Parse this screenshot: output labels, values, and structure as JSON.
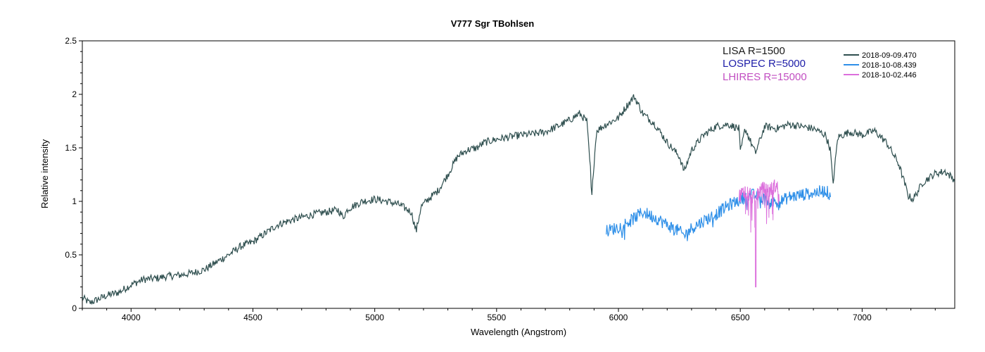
{
  "chart_data": {
    "type": "line",
    "title": "V777 Sgr   TBohlsen",
    "xlabel": "Wavelength (Angstrom)",
    "ylabel": "Relative intensity",
    "xlim": [
      3800,
      7380
    ],
    "ylim": [
      0,
      2.5
    ],
    "x_ticks": [
      4000,
      4500,
      5000,
      5500,
      6000,
      6500,
      7000
    ],
    "y_ticks": [
      0,
      0.5,
      1,
      1.5,
      2,
      2.5
    ],
    "grid": false,
    "legend_position": "top-right",
    "annotations": [
      {
        "text": "LISA R=1500",
        "color": "#1a1a1a"
      },
      {
        "text": "LOSPEC R=5000",
        "color": "#1c1ca8"
      },
      {
        "text": "LHIRES R=15000",
        "color": "#c24fc2"
      }
    ],
    "series": [
      {
        "name": "2018-09-09.470",
        "color": "#2f4f4f",
        "noise": 0.035,
        "x": [
          3800,
          3830,
          3860,
          3900,
          3950,
          4000,
          4050,
          4100,
          4150,
          4200,
          4250,
          4300,
          4350,
          4400,
          4450,
          4500,
          4550,
          4600,
          4650,
          4700,
          4750,
          4800,
          4850,
          4870,
          4890,
          4950,
          5000,
          5050,
          5100,
          5150,
          5170,
          5190,
          5220,
          5260,
          5300,
          5340,
          5380,
          5420,
          5450,
          5500,
          5550,
          5600,
          5650,
          5700,
          5750,
          5800,
          5840,
          5870,
          5885,
          5890,
          5896,
          5910,
          5950,
          6000,
          6030,
          6065,
          6100,
          6150,
          6200,
          6250,
          6270,
          6300,
          6350,
          6400,
          6450,
          6495,
          6500,
          6520,
          6562,
          6600,
          6650,
          6700,
          6750,
          6800,
          6850,
          6870,
          6880,
          6900,
          6950,
          7000,
          7050,
          7100,
          7150,
          7190,
          7210,
          7250,
          7300,
          7340,
          7380
        ],
        "values": [
          0.1,
          0.05,
          0.08,
          0.12,
          0.15,
          0.22,
          0.27,
          0.28,
          0.3,
          0.31,
          0.33,
          0.36,
          0.43,
          0.5,
          0.58,
          0.62,
          0.7,
          0.78,
          0.82,
          0.85,
          0.88,
          0.9,
          0.92,
          0.85,
          0.93,
          1.0,
          1.02,
          1.0,
          0.97,
          0.9,
          0.72,
          0.95,
          1.02,
          1.1,
          1.25,
          1.42,
          1.48,
          1.5,
          1.55,
          1.58,
          1.6,
          1.62,
          1.63,
          1.65,
          1.7,
          1.76,
          1.82,
          1.75,
          1.3,
          1.0,
          1.25,
          1.66,
          1.72,
          1.78,
          1.88,
          1.98,
          1.82,
          1.72,
          1.55,
          1.42,
          1.28,
          1.48,
          1.62,
          1.7,
          1.72,
          1.68,
          1.45,
          1.68,
          1.45,
          1.7,
          1.68,
          1.72,
          1.7,
          1.68,
          1.62,
          1.48,
          1.15,
          1.6,
          1.65,
          1.62,
          1.66,
          1.55,
          1.35,
          1.05,
          1.02,
          1.18,
          1.26,
          1.28,
          1.2
        ]
      },
      {
        "name": "2018-10-08.439",
        "color": "#2e8fe8",
        "noise": 0.06,
        "x": [
          5950,
          6000,
          6050,
          6100,
          6150,
          6200,
          6250,
          6270,
          6300,
          6350,
          6400,
          6450,
          6500,
          6550,
          6600,
          6650,
          6700,
          6750,
          6800,
          6850,
          6870
        ],
        "values": [
          0.72,
          0.76,
          0.82,
          0.9,
          0.85,
          0.78,
          0.72,
          0.68,
          0.75,
          0.82,
          0.88,
          0.96,
          1.02,
          1.06,
          1.02,
          0.98,
          1.04,
          1.06,
          1.08,
          1.1,
          1.06
        ]
      },
      {
        "name": "2018-10-02.446",
        "color": "#dc6fdc",
        "noise": 0.07,
        "x": [
          6495,
          6520,
          6540,
          6560,
          6580,
          6600,
          6620,
          6640,
          6660
        ],
        "values": [
          1.05,
          1.1,
          1.08,
          1.02,
          1.1,
          1.12,
          1.1,
          1.14,
          1.12
        ]
      }
    ]
  }
}
